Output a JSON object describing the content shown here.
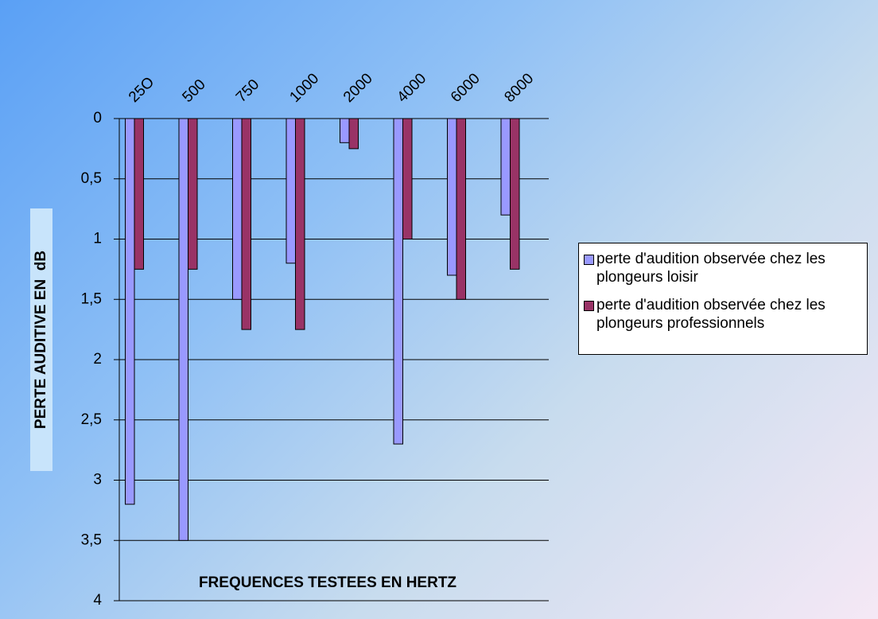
{
  "chart_data": {
    "type": "bar",
    "y_axis_label": "PERTE AUDITIVE EN  dB",
    "x_axis_label": "FREQUENCES TESTEES EN HERTZ",
    "categories": [
      "25O",
      "500",
      "750",
      "1000",
      "2000",
      "4000",
      "6000",
      "8000"
    ],
    "series": [
      {
        "name": "perte d'audition observée chez les plongeurs loisir",
        "color": "#9999ff",
        "values": [
          3.2,
          3.5,
          1.5,
          1.2,
          0.2,
          2.7,
          1.3,
          0.8
        ]
      },
      {
        "name": "perte d'audition observée chez les plongeurs professionnels",
        "color": "#993366",
        "values": [
          1.25,
          1.25,
          1.75,
          1.75,
          0.25,
          1.0,
          1.5,
          1.25
        ]
      }
    ],
    "ylim": [
      0,
      4
    ],
    "y_inverted": true,
    "yticks": [
      0,
      {
        "value": 0.5,
        "label": "0,5"
      },
      1,
      {
        "value": 1.5,
        "label": "1,5"
      },
      2,
      {
        "value": 2.5,
        "label": "2,5"
      },
      3,
      {
        "value": 3.5,
        "label": "3,5"
      },
      4
    ],
    "grid": true,
    "legend": "right"
  }
}
